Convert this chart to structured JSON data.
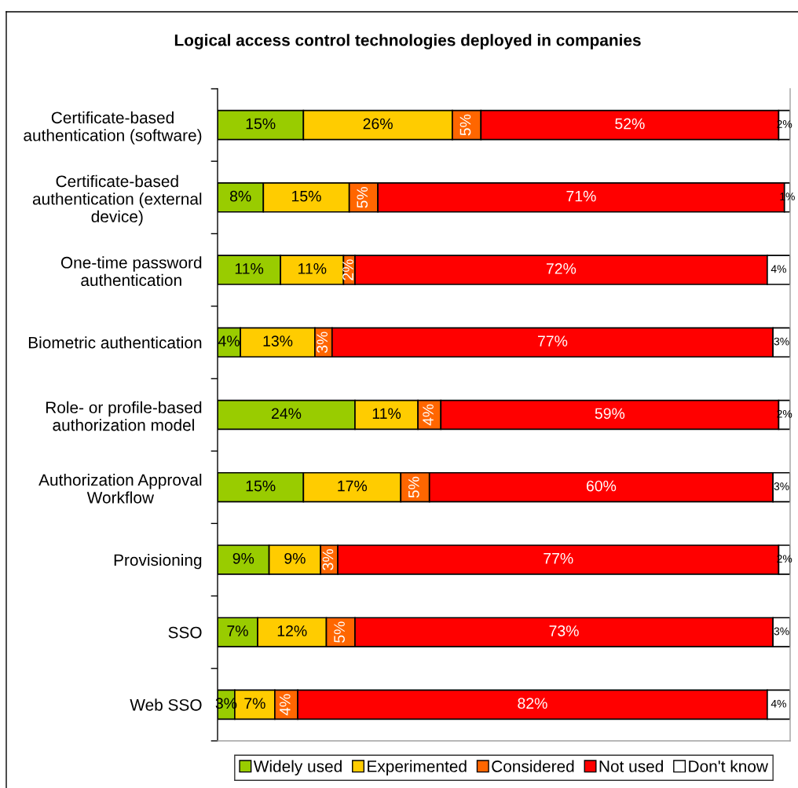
{
  "chart_data": {
    "type": "bar",
    "orientation": "horizontal",
    "stacked": true,
    "title": "Logical access control technologies deployed in companies",
    "categories": [
      "Certificate-based\nauthentication (software)",
      "Certificate-based\nauthentication (external\ndevice)",
      "One-time password\nauthentication",
      "Biometric authentication",
      "Role- or profile-based\nauthorization model",
      "Authorization Approval\nWorkflow",
      "Provisioning",
      "SSO",
      "Web SSO"
    ],
    "series": [
      {
        "name": "Widely used",
        "color": "#99cc00",
        "values": [
          15,
          8,
          11,
          4,
          24,
          15,
          9,
          7,
          3
        ],
        "value_labels": [
          "15%",
          "8%",
          "11%",
          "4%",
          "24%",
          "15%",
          "9%",
          "7%",
          "3%"
        ]
      },
      {
        "name": "Experimented",
        "color": "#ffcc00",
        "values": [
          26,
          15,
          11,
          13,
          11,
          17,
          9,
          12,
          7
        ],
        "value_labels": [
          "26%",
          "15%",
          "11%",
          "13%",
          "11%",
          "17%",
          "9%",
          "12%",
          "7%"
        ]
      },
      {
        "name": "Considered",
        "color": "#ff6600",
        "values": [
          5,
          5,
          2,
          3,
          4,
          5,
          3,
          5,
          4
        ],
        "value_labels": [
          "5%",
          "5%",
          "2%",
          "3%",
          "4%",
          "5%",
          "3%",
          "5%",
          "4%"
        ]
      },
      {
        "name": "Not used",
        "color": "#ff0000",
        "values": [
          52,
          71,
          72,
          77,
          59,
          60,
          77,
          73,
          82
        ],
        "value_labels": [
          "52%",
          "71%",
          "72%",
          "77%",
          "59%",
          "60%",
          "77%",
          "73%",
          "82%"
        ]
      },
      {
        "name": "Don't know",
        "color": "#ffffff",
        "values": [
          2,
          1,
          4,
          3,
          2,
          3,
          2,
          3,
          4
        ],
        "value_labels": [
          "2%",
          "1%",
          "4%",
          "3%",
          "2%",
          "3%",
          "2%",
          "3%",
          "4%"
        ]
      }
    ],
    "xlim": [
      0,
      100
    ],
    "legend": "bottom",
    "tick_labels": "y"
  }
}
